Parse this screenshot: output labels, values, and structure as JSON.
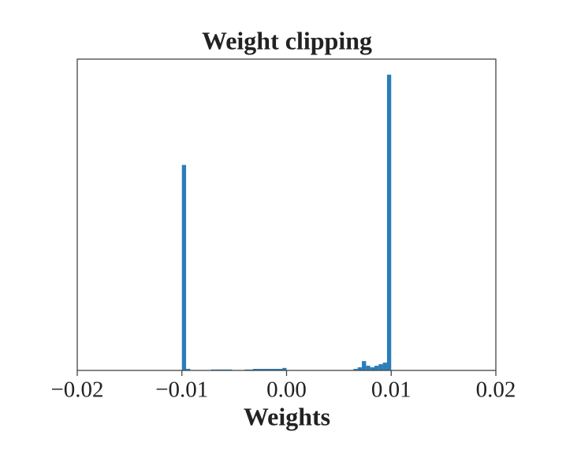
{
  "chart_data": {
    "type": "histogram",
    "title": "Weight clipping",
    "x_label": "Weights",
    "color": "#2a7db8",
    "bins": [
      -0.01,
      -0.0096,
      -0.0092,
      -0.0088,
      -0.0084,
      -0.008,
      -0.0076,
      -0.0072,
      -0.0068,
      -0.0064,
      -0.006,
      -0.0056,
      -0.0052,
      -0.0048,
      -0.0044,
      -0.004,
      -0.0036,
      -0.0032,
      -0.0028,
      -0.0024,
      -0.002,
      -0.0016,
      -0.0012,
      -0.0008,
      -0.0004,
      0,
      0.0004,
      0.0008,
      0.0012,
      0.0016,
      0.002,
      0.0024,
      0.0028,
      0.0032,
      0.0036,
      0.004,
      0.0044,
      0.0048,
      0.0052,
      0.0056,
      0.006,
      0.0064,
      0.0068,
      0.0072,
      0.0076,
      0.008,
      0.0084,
      0.0088,
      0.0092,
      0.0096,
      0.01
    ],
    "values": [
      66,
      0.5,
      0,
      0,
      0,
      0,
      0,
      0.3,
      0.3,
      0.3,
      0.3,
      0.3,
      0,
      0,
      0,
      0.3,
      0.3,
      0.5,
      0.5,
      0.5,
      0.5,
      0.5,
      0.5,
      0.5,
      0.8,
      0,
      0,
      0,
      0,
      0,
      0,
      0,
      0,
      0,
      0,
      0,
      0,
      0,
      0,
      0,
      0,
      0.5,
      1,
      3,
      1.5,
      1,
      1.5,
      2,
      2.5,
      95
    ],
    "xlim": [
      -0.02,
      0.02
    ],
    "ylim": [
      0,
      100
    ],
    "xticks": [
      {
        "value": -0.02,
        "label": "−0.02"
      },
      {
        "value": -0.01,
        "label": "−0.01"
      },
      {
        "value": 0,
        "label": "0.00"
      },
      0.01,
      0.02
    ]
  }
}
